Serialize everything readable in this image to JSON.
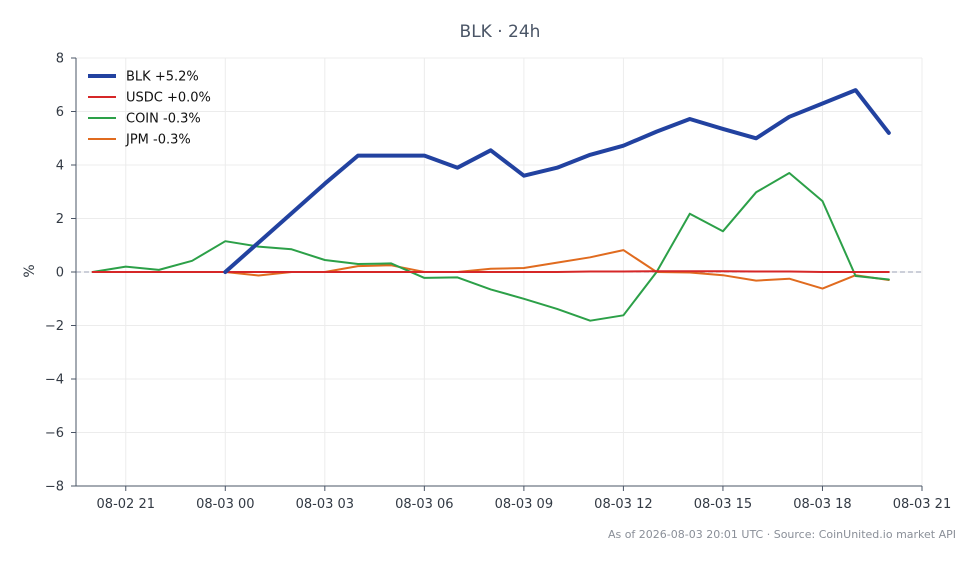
{
  "chart_data": {
    "type": "line",
    "title": "BLK · 24h",
    "xlabel": "",
    "ylabel": "%",
    "ylim": [
      -8,
      8
    ],
    "yticks": [
      -8,
      -6,
      -4,
      -2,
      0,
      2,
      4,
      6,
      8
    ],
    "xlim": [
      "2026-08-02 19:30",
      "2026-08-03 21:00"
    ],
    "xtick_labels": [
      "08-02 21",
      "08-03 00",
      "08-03 03",
      "08-03 06",
      "08-03 09",
      "08-03 12",
      "08-03 15",
      "08-03 18",
      "08-03 21"
    ],
    "xticks": [
      "2026-08-02 21:00",
      "2026-08-03 00:00",
      "2026-08-03 03:00",
      "2026-08-03 06:00",
      "2026-08-03 09:00",
      "2026-08-03 12:00",
      "2026-08-03 15:00",
      "2026-08-03 18:00",
      "2026-08-03 21:00"
    ],
    "grid": true,
    "zero_line": true,
    "legend_position": "top-left",
    "series": [
      {
        "name": "BLK +5.2%",
        "color": "#2242a0",
        "width": 4,
        "points": [
          [
            "2026-08-03 00:00",
            0.0
          ],
          [
            "2026-08-03 01:00",
            1.1
          ],
          [
            "2026-08-03 02:00",
            2.2
          ],
          [
            "2026-08-03 03:00",
            3.3
          ],
          [
            "2026-08-03 04:00",
            4.35
          ],
          [
            "2026-08-03 05:00",
            4.35
          ],
          [
            "2026-08-03 06:00",
            4.35
          ],
          [
            "2026-08-03 07:00",
            3.9
          ],
          [
            "2026-08-03 08:00",
            4.55
          ],
          [
            "2026-08-03 09:00",
            3.6
          ],
          [
            "2026-08-03 10:00",
            3.9
          ],
          [
            "2026-08-03 11:00",
            4.38
          ],
          [
            "2026-08-03 12:00",
            4.72
          ],
          [
            "2026-08-03 13:00",
            5.25
          ],
          [
            "2026-08-03 14:00",
            5.72
          ],
          [
            "2026-08-03 15:00",
            5.35
          ],
          [
            "2026-08-03 16:00",
            5.0
          ],
          [
            "2026-08-03 17:00",
            5.8
          ],
          [
            "2026-08-03 18:00",
            6.3
          ],
          [
            "2026-08-03 19:00",
            6.8
          ],
          [
            "2026-08-03 20:00",
            5.2
          ]
        ]
      },
      {
        "name": "USDC +0.0%",
        "color": "#d62728",
        "width": 2,
        "points": [
          [
            "2026-08-02 20:00",
            0.0
          ],
          [
            "2026-08-02 21:00",
            0.0
          ],
          [
            "2026-08-02 22:00",
            0.0
          ],
          [
            "2026-08-02 23:00",
            0.0
          ],
          [
            "2026-08-03 00:00",
            0.0
          ],
          [
            "2026-08-03 01:00",
            0.0
          ],
          [
            "2026-08-03 02:00",
            0.0
          ],
          [
            "2026-08-03 03:00",
            0.0
          ],
          [
            "2026-08-03 04:00",
            0.0
          ],
          [
            "2026-08-03 05:00",
            0.0
          ],
          [
            "2026-08-03 06:00",
            0.0
          ],
          [
            "2026-08-03 07:00",
            0.0
          ],
          [
            "2026-08-03 08:00",
            0.0
          ],
          [
            "2026-08-03 09:00",
            0.0
          ],
          [
            "2026-08-03 10:00",
            0.0
          ],
          [
            "2026-08-03 11:00",
            0.02
          ],
          [
            "2026-08-03 12:00",
            0.02
          ],
          [
            "2026-08-03 13:00",
            0.03
          ],
          [
            "2026-08-03 14:00",
            0.03
          ],
          [
            "2026-08-03 15:00",
            0.03
          ],
          [
            "2026-08-03 16:00",
            0.02
          ],
          [
            "2026-08-03 17:00",
            0.02
          ],
          [
            "2026-08-03 18:00",
            0.0
          ],
          [
            "2026-08-03 19:00",
            0.0
          ],
          [
            "2026-08-03 20:00",
            0.0
          ]
        ]
      },
      {
        "name": "COIN -0.3%",
        "color": "#2ca048",
        "width": 2,
        "points": [
          [
            "2026-08-02 20:00",
            0.0
          ],
          [
            "2026-08-02 21:00",
            0.2
          ],
          [
            "2026-08-02 22:00",
            0.08
          ],
          [
            "2026-08-02 23:00",
            0.42
          ],
          [
            "2026-08-03 00:00",
            1.15
          ],
          [
            "2026-08-03 01:00",
            0.95
          ],
          [
            "2026-08-03 02:00",
            0.85
          ],
          [
            "2026-08-03 03:00",
            0.45
          ],
          [
            "2026-08-03 04:00",
            0.3
          ],
          [
            "2026-08-03 05:00",
            0.32
          ],
          [
            "2026-08-03 06:00",
            -0.22
          ],
          [
            "2026-08-03 07:00",
            -0.2
          ],
          [
            "2026-08-03 08:00",
            -0.65
          ],
          [
            "2026-08-03 09:00",
            -1.0
          ],
          [
            "2026-08-03 10:00",
            -1.38
          ],
          [
            "2026-08-03 11:00",
            -1.82
          ],
          [
            "2026-08-03 12:00",
            -1.62
          ],
          [
            "2026-08-03 13:00",
            0.0
          ],
          [
            "2026-08-03 14:00",
            2.18
          ],
          [
            "2026-08-03 15:00",
            1.52
          ],
          [
            "2026-08-03 16:00",
            2.98
          ],
          [
            "2026-08-03 17:00",
            3.7
          ],
          [
            "2026-08-03 18:00",
            2.65
          ],
          [
            "2026-08-03 19:00",
            -0.15
          ],
          [
            "2026-08-03 20:00",
            -0.28
          ]
        ]
      },
      {
        "name": "JPM -0.3%",
        "color": "#e06b1f",
        "width": 2,
        "points": [
          [
            "2026-08-03 00:00",
            0.0
          ],
          [
            "2026-08-03 01:00",
            -0.13
          ],
          [
            "2026-08-03 02:00",
            0.0
          ],
          [
            "2026-08-03 03:00",
            0.0
          ],
          [
            "2026-08-03 04:00",
            0.22
          ],
          [
            "2026-08-03 05:00",
            0.25
          ],
          [
            "2026-08-03 06:00",
            0.0
          ],
          [
            "2026-08-03 07:00",
            0.0
          ],
          [
            "2026-08-03 08:00",
            0.12
          ],
          [
            "2026-08-03 09:00",
            0.15
          ],
          [
            "2026-08-03 10:00",
            0.35
          ],
          [
            "2026-08-03 11:00",
            0.55
          ],
          [
            "2026-08-03 12:00",
            0.82
          ],
          [
            "2026-08-03 13:00",
            0.0
          ],
          [
            "2026-08-03 14:00",
            -0.02
          ],
          [
            "2026-08-03 15:00",
            -0.12
          ],
          [
            "2026-08-03 16:00",
            -0.32
          ],
          [
            "2026-08-03 17:00",
            -0.25
          ],
          [
            "2026-08-03 18:00",
            -0.62
          ],
          [
            "2026-08-03 19:00",
            -0.12
          ],
          [
            "2026-08-03 20:00",
            -0.3
          ]
        ]
      }
    ],
    "footer": "As of 2026-08-03 20:01 UTC · Source: CoinUnited.io market API"
  }
}
